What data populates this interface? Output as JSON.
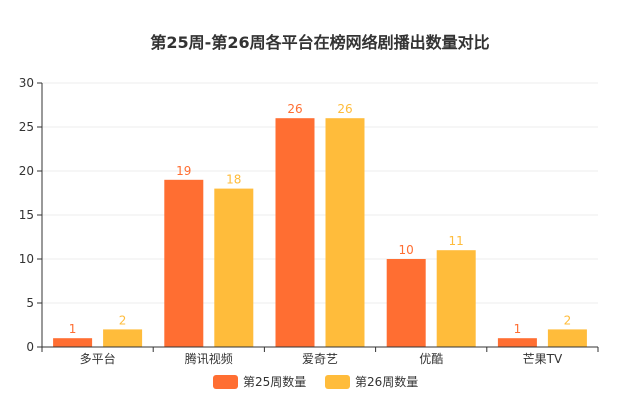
{
  "chart_data": {
    "type": "bar",
    "title": "第25周-第26周各平台在榜网络剧播出数量对比",
    "xlabel": "",
    "ylabel": "",
    "categories": [
      "多平台",
      "腾讯视频",
      "爱奇艺",
      "优酷",
      "芒果TV"
    ],
    "series": [
      {
        "name": "第25周数量",
        "values": [
          1,
          19,
          26,
          10,
          1
        ],
        "color": "#ff6e32"
      },
      {
        "name": "第26周数量",
        "values": [
          2,
          18,
          26,
          11,
          2
        ],
        "color": "#ffbc3b"
      }
    ],
    "ylim": [
      0,
      30
    ],
    "yticks": [
      0,
      5,
      10,
      15,
      20,
      25,
      30
    ],
    "grid": true,
    "legend_position": "bottom-center",
    "data_labels": true
  }
}
